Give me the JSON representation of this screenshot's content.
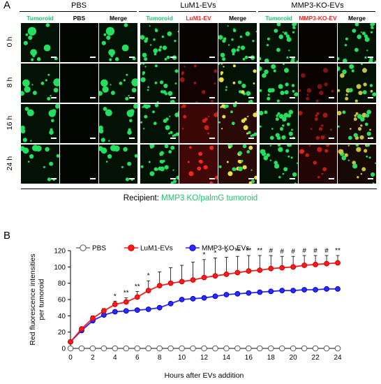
{
  "panel_a": {
    "letter": "A",
    "groups": [
      {
        "title": "PBS",
        "columns": [
          "Tumoroid",
          "PBS",
          "Merge"
        ],
        "colors": [
          "#1fc46e",
          "#000000",
          "#000000"
        ]
      },
      {
        "title": "LuM1-EVs",
        "columns": [
          "Tumoroid",
          "LuM1-EV",
          "Merge"
        ],
        "colors": [
          "#1fc46e",
          "#ff2020",
          "#000000"
        ]
      },
      {
        "title": "MMP3-KO-EVs",
        "columns": [
          "Tumoroid",
          "MMP3-KO-EV",
          "Merge"
        ],
        "colors": [
          "#1fc46e",
          "#ff2020",
          "#000000"
        ]
      }
    ],
    "rows": [
      "0 h",
      "8 h",
      "16 h",
      "24 h"
    ],
    "recipient_label": "Recipient:",
    "recipient_value": "MMP3 KO/palmG tumoroid"
  },
  "panel_b": {
    "letter": "B"
  },
  "chart_data": {
    "type": "line",
    "xlabel": "Hours after EVs addition",
    "ylabel": "Red fluorescence intensities per tumoroid",
    "ylabel_lines": [
      "Red fluorescence intensities",
      "per tumoroid"
    ],
    "x": [
      0,
      1,
      2,
      3,
      4,
      5,
      6,
      7,
      8,
      9,
      10,
      11,
      12,
      13,
      14,
      15,
      16,
      17,
      18,
      19,
      20,
      21,
      22,
      23,
      24
    ],
    "xlim": [
      0,
      24
    ],
    "ylim": [
      0,
      120
    ],
    "xticks": [
      "0",
      "2",
      "4",
      "6",
      "8",
      "10",
      "12",
      "14",
      "16",
      "18",
      "20",
      "22",
      "24"
    ],
    "yticks": [
      "0",
      "20",
      "40",
      "60",
      "80",
      "100",
      "120"
    ],
    "legend_position": "top",
    "series": [
      {
        "name": "PBS",
        "color": "#ffffff",
        "edge": "#555555",
        "values": [
          0,
          0,
          0,
          0,
          0,
          0,
          0,
          0,
          0,
          0,
          0,
          0,
          0,
          0,
          0,
          0,
          0,
          0,
          0,
          0,
          0,
          0,
          0,
          0,
          0
        ],
        "errors": [
          0,
          0,
          0,
          0,
          0,
          0,
          0,
          0,
          0,
          0,
          0,
          0,
          0,
          0,
          0,
          0,
          0,
          0,
          0,
          0,
          0,
          0,
          0,
          0,
          0
        ]
      },
      {
        "name": "LuM1-EVs",
        "color": "#ff1a1a",
        "edge": "#cc0000",
        "values": [
          8,
          24,
          37,
          46,
          54,
          57,
          63,
          71,
          77,
          80,
          82,
          84,
          87,
          89,
          91,
          93,
          95,
          96,
          98,
          99,
          100,
          102,
          103,
          104,
          105
        ],
        "errors": [
          1,
          2,
          3,
          3,
          4,
          5,
          7,
          12,
          17,
          19,
          20,
          22,
          22,
          22,
          21,
          20,
          19,
          18,
          16,
          14,
          13,
          12,
          11,
          10,
          9
        ]
      },
      {
        "name": "MMP3-KO-EVs",
        "color": "#2a2aff",
        "edge": "#0000cc",
        "values": [
          8,
          22,
          34,
          41,
          45,
          46,
          47,
          48,
          50,
          55,
          60,
          61,
          62,
          64,
          66,
          67,
          68,
          69,
          70,
          71,
          71,
          72,
          72,
          73,
          73
        ],
        "errors": [
          0,
          1,
          1,
          1,
          1,
          1,
          1,
          1,
          1,
          1,
          1,
          1,
          1,
          1,
          1,
          1,
          1,
          1,
          1,
          1,
          1,
          1,
          1,
          1,
          1
        ]
      }
    ],
    "significance": [
      {
        "x": 4,
        "label": "*"
      },
      {
        "x": 5,
        "label": "**"
      },
      {
        "x": 6,
        "label": "**"
      },
      {
        "x": 7,
        "label": "*"
      },
      {
        "x": 12,
        "label": "*"
      },
      {
        "x": 13,
        "label": "*"
      },
      {
        "x": 14,
        "label": "*"
      },
      {
        "x": 15,
        "label": "**"
      },
      {
        "x": 16,
        "label": "**"
      },
      {
        "x": 17,
        "label": "**"
      },
      {
        "x": 18,
        "label": "#"
      },
      {
        "x": 19,
        "label": "#"
      },
      {
        "x": 20,
        "label": "#"
      },
      {
        "x": 21,
        "label": "#"
      },
      {
        "x": 22,
        "label": "#"
      },
      {
        "x": 23,
        "label": "#"
      },
      {
        "x": 24,
        "label": "**"
      }
    ]
  }
}
